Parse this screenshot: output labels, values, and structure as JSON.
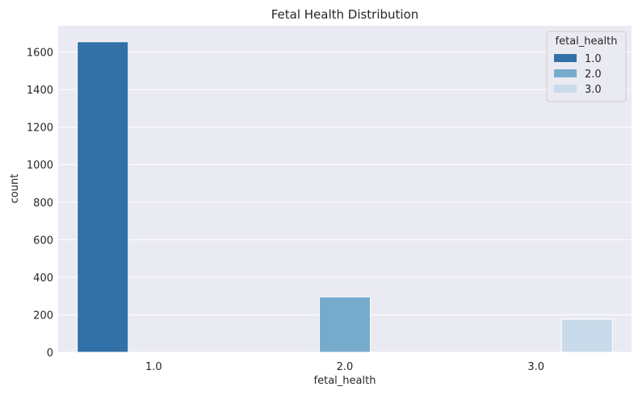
{
  "chart_data": {
    "type": "bar",
    "title": "Fetal Health Distribution",
    "xlabel": "fetal_health",
    "ylabel": "count",
    "categories": [
      "1.0",
      "2.0",
      "3.0"
    ],
    "series": [
      {
        "name": "1.0",
        "values": [
          1655,
          0,
          0
        ]
      },
      {
        "name": "2.0",
        "values": [
          0,
          295,
          0
        ]
      },
      {
        "name": "3.0",
        "values": [
          0,
          0,
          176
        ]
      }
    ],
    "ylim": [
      0,
      1740
    ],
    "yticks": [
      0,
      200,
      400,
      600,
      800,
      1000,
      1200,
      1400,
      1600
    ],
    "grid": true,
    "legend": {
      "title": "fetal_health",
      "placement": "top-right"
    },
    "colors": [
      "#3171a8",
      "#77abcc",
      "#c9dbea"
    ],
    "background": "#eaeaf2"
  }
}
